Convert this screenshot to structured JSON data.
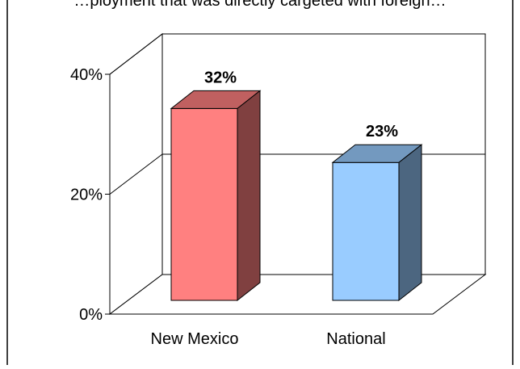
{
  "header": {
    "title": "…ployment that was directly cargeted with foreign…"
  },
  "chart_data": {
    "type": "bar",
    "categories": [
      "New Mexico",
      "National"
    ],
    "values": [
      32,
      23
    ],
    "data_labels": [
      "32%",
      "23%"
    ],
    "y_ticks": [
      "0%",
      "20%",
      "40%"
    ],
    "ylim": [
      0,
      40
    ],
    "grid": true,
    "style": "3d",
    "colors": {
      "New Mexico": {
        "front": "#FF8080",
        "top": "#C06060",
        "side": "#804040"
      },
      "National": {
        "front": "#99CCFF",
        "top": "#7399BF",
        "side": "#4C6680"
      }
    }
  }
}
